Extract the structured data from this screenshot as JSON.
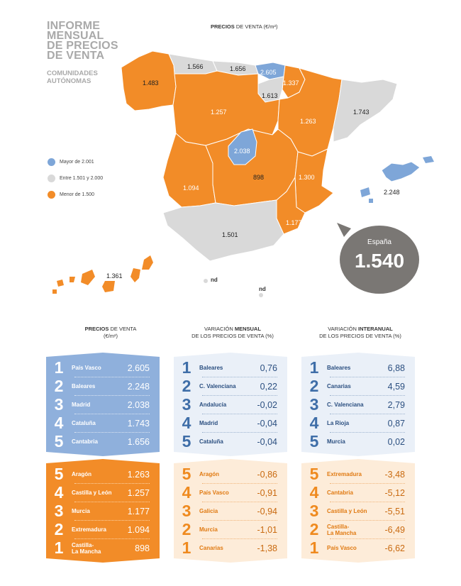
{
  "header": {
    "title_lines": [
      "INFORME",
      "MENSUAL",
      "DE PRECIOS",
      "DE VENTA"
    ],
    "subtitle_lines": [
      "COMUNIDADES",
      "AUTÓNOMAS"
    ],
    "map_title_bold": "PRECIOS",
    "map_title_rest": " DE VENTA (€/m²)"
  },
  "colors": {
    "orange": "#f28c28",
    "grey": "#d9d9d9",
    "blue": "#7ea6d8",
    "panel_blue": "#8fb0dc",
    "panel_orange": "#f28c28",
    "panel_lblue": "#eaf0f8",
    "panel_lorange": "#fdecd9"
  },
  "legend": [
    {
      "label": "Mayor de 2.001",
      "color": "#7ea6d8"
    },
    {
      "label": "Entre 1.501 y 2.000",
      "color": "#d9d9d9"
    },
    {
      "label": "Menor de 1.500",
      "color": "#f28c28"
    }
  ],
  "map_values": {
    "galicia": "1.483",
    "asturias": "1.566",
    "cantabria": "1.656",
    "pais_vasco": "2.605",
    "navarra": "1.337",
    "la_rioja": "1.613",
    "castilla_leon": "1.257",
    "aragon": "1.263",
    "cataluna": "1.743",
    "madrid": "2.038",
    "castilla_la_mancha": "898",
    "extremadura": "1.094",
    "c_valenciana": "1.300",
    "baleares": "2.248",
    "murcia": "1.177",
    "andalucia": "1.501",
    "canarias": "1.361",
    "ceuta": "nd",
    "melilla": "nd"
  },
  "spain": {
    "label": "España",
    "value": "1.540"
  },
  "columns": [
    {
      "line1_pre": "",
      "line1_bold": "PRECIOS",
      "line1_post": " DE VENTA",
      "line2": "(€/m²)"
    },
    {
      "line1_pre": "VARIACIÓN ",
      "line1_bold": "MENSUAL",
      "line1_post": "",
      "line2": "DE LOS PRECIOS DE VENTA (%)"
    },
    {
      "line1_pre": "VARIACIÓN ",
      "line1_bold": "INTERANUAL",
      "line1_post": "",
      "line2": "DE LOS PRECIOS DE VENTA (%)"
    }
  ],
  "tables": {
    "precios_top": [
      {
        "rank": "1",
        "name": "País Vasco",
        "value": "2.605"
      },
      {
        "rank": "2",
        "name": "Baleares",
        "value": "2.248"
      },
      {
        "rank": "3",
        "name": "Madrid",
        "value": "2.038"
      },
      {
        "rank": "4",
        "name": "Cataluña",
        "value": "1.743"
      },
      {
        "rank": "5",
        "name": "Cantabria",
        "value": "1.656"
      }
    ],
    "mensual_top": [
      {
        "rank": "1",
        "name": "Baleares",
        "value": "0,76"
      },
      {
        "rank": "2",
        "name": "C. Valenciana",
        "value": "0,22"
      },
      {
        "rank": "3",
        "name": "Andalucía",
        "value": "-0,02"
      },
      {
        "rank": "4",
        "name": "Madrid",
        "value": "-0,04"
      },
      {
        "rank": "5",
        "name": "Cataluña",
        "value": "-0,04"
      }
    ],
    "interanual_top": [
      {
        "rank": "1",
        "name": "Baleares",
        "value": "6,88"
      },
      {
        "rank": "2",
        "name": "Canarias",
        "value": "4,59"
      },
      {
        "rank": "3",
        "name": "C. Valenciana",
        "value": "2,79"
      },
      {
        "rank": "4",
        "name": "La Rioja",
        "value": "0,87"
      },
      {
        "rank": "5",
        "name": "Murcia",
        "value": "0,02"
      }
    ],
    "precios_bottom": [
      {
        "rank": "5",
        "name": "Aragón",
        "value": "1.263"
      },
      {
        "rank": "4",
        "name": "Castilla y León",
        "value": "1.257"
      },
      {
        "rank": "3",
        "name": "Murcia",
        "value": "1.177"
      },
      {
        "rank": "2",
        "name": "Extremadura",
        "value": "1.094"
      },
      {
        "rank": "1",
        "name": "Castilla-\nLa Mancha",
        "value": "898"
      }
    ],
    "mensual_bottom": [
      {
        "rank": "5",
        "name": "Aragón",
        "value": "-0,86"
      },
      {
        "rank": "4",
        "name": "País Vasco",
        "value": "-0,91"
      },
      {
        "rank": "3",
        "name": "Galicia",
        "value": "-0,94"
      },
      {
        "rank": "2",
        "name": "Murcia",
        "value": "-1,01"
      },
      {
        "rank": "1",
        "name": "Canarias",
        "value": "-1,38"
      }
    ],
    "interanual_bottom": [
      {
        "rank": "5",
        "name": "Extremadura",
        "value": "-3,48"
      },
      {
        "rank": "4",
        "name": "Cantabria",
        "value": "-5,12"
      },
      {
        "rank": "3",
        "name": "Castilla y León",
        "value": "-5,51"
      },
      {
        "rank": "2",
        "name": "Castilla-\nLa Mancha",
        "value": "-6,49"
      },
      {
        "rank": "1",
        "name": "País Vasco",
        "value": "-6,62"
      }
    ]
  }
}
